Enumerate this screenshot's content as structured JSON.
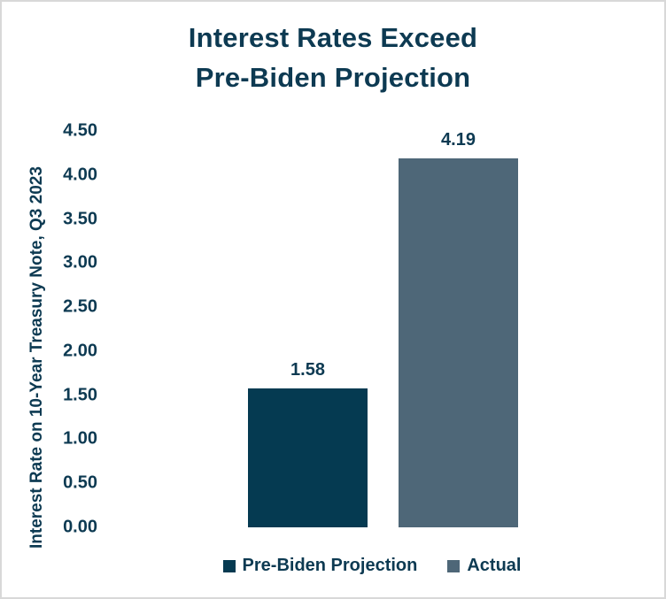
{
  "chart_data": {
    "type": "bar",
    "title": "Interest Rates Exceed Pre-Biden Projection",
    "title_lines": [
      "Interest Rates Exceed",
      "Pre-Biden Projection"
    ],
    "ylabel": "Interest Rate on 10-Year Treasury Note, Q3 2023",
    "xlabel": "",
    "categories": [
      "Pre-Biden Projection",
      "Actual"
    ],
    "series": [
      {
        "name": "Pre-Biden Projection",
        "value": 1.58,
        "label": "1.58",
        "color": "#053a51"
      },
      {
        "name": "Actual",
        "value": 4.19,
        "label": "4.19",
        "color": "#4e6778"
      }
    ],
    "ylim": [
      0,
      4.5
    ],
    "ytick_step": 0.5,
    "yticks": [
      "4.50",
      "4.00",
      "3.50",
      "3.00",
      "2.50",
      "2.00",
      "1.50",
      "1.00",
      "0.50",
      "0.00"
    ],
    "grid": false,
    "legend_position": "bottom",
    "text_color": "#0d3a52",
    "frame_color": "#d8d8d8"
  }
}
